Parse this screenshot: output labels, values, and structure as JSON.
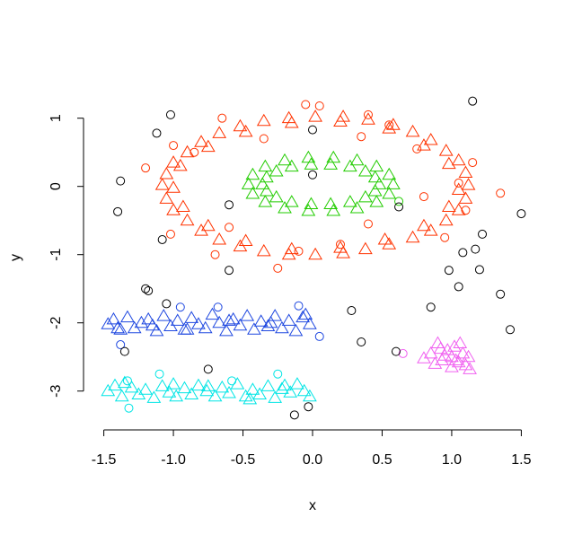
{
  "chart_data": {
    "type": "scatter",
    "x_label": "x",
    "y_label": "y",
    "xlim": [
      -1.62,
      1.62
    ],
    "ylim": [
      -3.53,
      1.43
    ],
    "xticks": [
      -1.5,
      {
        "value": -1,
        "label": "-1.0"
      },
      -0.5,
      {
        "value": 0,
        "label": "0.0"
      },
      0.5,
      {
        "value": 1,
        "label": "1.0"
      },
      1.5
    ],
    "yticks": [
      -3,
      -2,
      -1,
      0,
      1
    ],
    "series": [
      {
        "color": "#ff3300",
        "marker": "triangle",
        "x": [
          1.12,
          1.05,
          1.05,
          0.98,
          0.85,
          0.8,
          0.58,
          0.55,
          0.22,
          0.2,
          -0.17,
          -0.15,
          -0.52,
          -0.48,
          -0.8,
          -0.75,
          -1.0,
          -0.95,
          -1.08,
          -1.0,
          -1.0,
          -0.93,
          -0.8,
          -0.75,
          -0.52,
          -0.48,
          -0.17,
          -0.15,
          0.22,
          0.2,
          0.55,
          0.52,
          0.85,
          0.8,
          1.05,
          0.98,
          1.1,
          0.96,
          0.72,
          0.4,
          0.02,
          -0.35,
          -0.67,
          -0.9,
          -1.05,
          -1.05,
          -0.9,
          -0.67,
          -0.35,
          0.02,
          0.38,
          0.72,
          0.96,
          1.1
        ],
        "y": [
          0.02,
          -0.05,
          0.38,
          0.33,
          0.68,
          0.6,
          0.9,
          0.85,
          1.02,
          0.95,
          1.0,
          0.93,
          0.88,
          0.8,
          0.65,
          0.58,
          0.35,
          0.3,
          0.02,
          -0.02,
          -0.35,
          -0.3,
          -0.65,
          -0.58,
          -0.88,
          -0.8,
          -1.0,
          -0.92,
          -0.98,
          -0.9,
          -0.85,
          -0.78,
          -0.65,
          -0.58,
          -0.35,
          -0.3,
          0.2,
          0.52,
          0.8,
          0.98,
          1.02,
          0.96,
          0.78,
          0.5,
          0.18,
          -0.18,
          -0.5,
          -0.78,
          -0.95,
          -1.0,
          -0.92,
          -0.75,
          -0.5,
          -0.18
        ]
      },
      {
        "color": "#ff3300",
        "marker": "circle",
        "x": [
          -1.0,
          -1.2,
          -1.02,
          -0.7,
          -0.65,
          -0.85,
          -0.25,
          -0.05,
          0.05,
          0.35,
          0.2,
          0.4,
          0.75,
          0.8,
          1.05,
          1.15,
          1.35,
          0.95,
          -0.35,
          -0.6,
          0.55,
          -0.1,
          1.1,
          0.4
        ],
        "y": [
          0.6,
          0.27,
          -0.7,
          -1.0,
          1.0,
          0.5,
          -1.2,
          1.2,
          1.18,
          0.73,
          -0.85,
          -0.55,
          0.55,
          -0.15,
          0.05,
          0.35,
          -0.1,
          -0.75,
          0.7,
          -0.6,
          0.9,
          -0.95,
          -0.35,
          1.05
        ]
      },
      {
        "color": "#22cc00",
        "marker": "triangle",
        "x": [
          0.58,
          0.55,
          0.46,
          0.32,
          0.15,
          -0.03,
          -0.2,
          -0.34,
          -0.43,
          -0.46,
          -0.43,
          -0.34,
          -0.2,
          -0.03,
          0.15,
          0.32,
          0.46,
          0.55,
          0.48,
          0.45,
          0.38,
          0.27,
          0.13,
          -0.01,
          -0.15,
          -0.26,
          -0.33,
          -0.36,
          -0.33,
          -0.26,
          -0.15,
          -0.01,
          0.13,
          0.27,
          0.38,
          0.45
        ],
        "y": [
          0.03,
          0.17,
          0.29,
          0.38,
          0.42,
          0.42,
          0.38,
          0.29,
          0.17,
          0.03,
          -0.11,
          -0.23,
          -0.32,
          -0.36,
          -0.36,
          -0.32,
          -0.23,
          -0.11,
          0.03,
          0.13,
          0.22,
          0.29,
          0.32,
          0.32,
          0.29,
          0.22,
          0.13,
          0.03,
          -0.07,
          -0.16,
          -0.23,
          -0.26,
          -0.26,
          -0.23,
          -0.16,
          -0.07
        ]
      },
      {
        "color": "#22cc00",
        "marker": "circle",
        "x": [
          0.62
        ],
        "y": [
          -0.22
        ]
      },
      {
        "color": "#1f48e0",
        "marker": "triangle",
        "x": [
          -1.47,
          -1.43,
          -1.38,
          -1.33,
          -1.28,
          -1.23,
          -1.18,
          -1.12,
          -1.07,
          -1.02,
          -0.97,
          -0.92,
          -0.87,
          -0.82,
          -0.77,
          -0.72,
          -0.67,
          -0.62,
          -0.57,
          -0.52,
          -0.47,
          -0.42,
          -0.37,
          -0.32,
          -0.27,
          -0.22,
          -0.17,
          -0.12,
          -0.07,
          -0.02,
          -1.4,
          -1.15,
          -0.9,
          -0.6,
          -0.3,
          -0.05
        ],
        "y": [
          -2.02,
          -1.95,
          -2.1,
          -1.92,
          -2.08,
          -2.0,
          -1.95,
          -2.12,
          -1.9,
          -2.05,
          -1.97,
          -2.1,
          -1.93,
          -2.02,
          -2.08,
          -1.88,
          -2.0,
          -2.12,
          -1.95,
          -2.04,
          -1.9,
          -2.1,
          -1.98,
          -2.05,
          -1.9,
          -2.08,
          -1.97,
          -2.12,
          -1.92,
          -2.02,
          -2.08,
          -2.04,
          -2.1,
          -1.97,
          -2.0,
          -1.88
        ]
      },
      {
        "color": "#1f48e0",
        "marker": "circle",
        "x": [
          -1.38,
          -0.95,
          -0.68,
          0.05,
          -0.1
        ],
        "y": [
          -2.32,
          -1.77,
          -1.77,
          -2.2,
          -1.75
        ]
      },
      {
        "color": "#00e5e5",
        "marker": "triangle",
        "x": [
          -1.47,
          -1.42,
          -1.37,
          -1.3,
          -1.25,
          -1.2,
          -1.14,
          -1.08,
          -1.03,
          -0.98,
          -0.92,
          -0.87,
          -0.82,
          -0.76,
          -0.7,
          -0.65,
          -0.6,
          -0.54,
          -0.48,
          -0.43,
          -0.38,
          -0.32,
          -0.27,
          -0.22,
          -0.16,
          -0.11,
          -0.06,
          -0.02,
          -1.35,
          -1.0,
          -0.75,
          -0.45,
          -0.2
        ],
        "y": [
          -3.0,
          -2.92,
          -3.08,
          -2.95,
          -3.05,
          -2.98,
          -3.1,
          -2.93,
          -3.02,
          -3.08,
          -2.96,
          -3.05,
          -2.92,
          -3.0,
          -3.08,
          -2.95,
          -3.03,
          -2.9,
          -3.08,
          -2.98,
          -3.05,
          -2.93,
          -3.1,
          -2.97,
          -3.02,
          -2.9,
          -3.0,
          -3.08,
          -2.88,
          -2.9,
          -2.93,
          -3.12,
          -2.92
        ]
      },
      {
        "color": "#00e5e5",
        "marker": "circle",
        "x": [
          -1.32,
          -1.1,
          -0.58,
          -0.25,
          -1.33
        ],
        "y": [
          -3.25,
          -2.75,
          -2.85,
          -2.75,
          -2.85
        ]
      },
      {
        "color": "#f060f0",
        "marker": "triangle",
        "x": [
          0.8,
          0.85,
          0.9,
          0.93,
          0.97,
          1.0,
          1.02,
          1.05,
          1.08,
          1.1,
          1.12,
          0.88,
          0.95,
          1.0,
          1.06,
          1.13,
          0.92,
          1.03
        ],
        "y": [
          -2.52,
          -2.45,
          -2.3,
          -2.55,
          -2.4,
          -2.5,
          -2.35,
          -2.58,
          -2.45,
          -2.62,
          -2.5,
          -2.6,
          -2.48,
          -2.65,
          -2.3,
          -2.68,
          -2.38,
          -2.55
        ]
      },
      {
        "color": "#f060f0",
        "marker": "circle",
        "x": [
          0.65
        ],
        "y": [
          -2.45
        ]
      },
      {
        "color": "#000000",
        "marker": "circle",
        "x": [
          1.15,
          -1.02,
          -1.12,
          0.0,
          -1.38,
          -1.4,
          -0.6,
          0.62,
          0.0,
          1.5,
          1.22,
          1.08,
          1.17,
          0.98,
          1.2,
          1.05,
          -0.6,
          -1.08,
          -1.2,
          -1.18,
          -1.05,
          1.35,
          0.85,
          0.28,
          0.35,
          1.42,
          0.6,
          -1.35,
          -0.75,
          -0.03,
          -0.13
        ],
        "y": [
          1.25,
          1.05,
          0.78,
          0.83,
          0.08,
          -0.37,
          -0.27,
          -0.3,
          0.17,
          -0.4,
          -0.7,
          -0.97,
          -0.92,
          -1.23,
          -1.22,
          -1.47,
          -1.23,
          -0.78,
          -1.5,
          -1.53,
          -1.72,
          -1.58,
          -1.77,
          -1.82,
          -2.28,
          -2.1,
          -2.42,
          -2.42,
          -2.68,
          -3.23,
          -3.35
        ]
      }
    ]
  }
}
